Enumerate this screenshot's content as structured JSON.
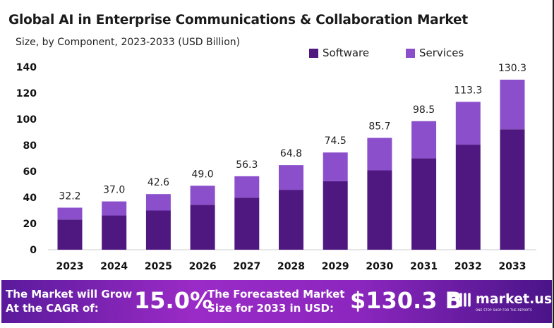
{
  "chart_data": {
    "type": "bar",
    "stacked": true,
    "title": "Global AI in Enterprise Communications & Collaboration Market",
    "subtitle": "Size, by Component, 2023-2033 (USD Billion)",
    "categories": [
      "2023",
      "2024",
      "2025",
      "2026",
      "2027",
      "2028",
      "2029",
      "2030",
      "2031",
      "2032",
      "2033"
    ],
    "series": [
      {
        "name": "Software",
        "color": "#4f1880",
        "values": [
          23.1,
          26.2,
          30.0,
          34.4,
          39.9,
          45.9,
          52.5,
          60.8,
          70.1,
          80.5,
          92.3
        ]
      },
      {
        "name": "Services",
        "color": "#8b4fcc",
        "values": [
          9.1,
          10.8,
          12.6,
          14.6,
          16.4,
          18.9,
          22.0,
          24.9,
          28.4,
          32.8,
          38.0
        ]
      }
    ],
    "totals_labels": [
      "32.2",
      "37.0",
      "42.6",
      "49.0",
      "56.3",
      "64.8",
      "74.5",
      "85.7",
      "98.5",
      "113.3",
      "130.3"
    ],
    "totals": [
      32.2,
      37.0,
      42.6,
      49.0,
      56.3,
      64.8,
      74.5,
      85.7,
      98.5,
      113.3,
      130.3
    ],
    "yticks": [
      "0",
      "20",
      "40",
      "60",
      "80",
      "100",
      "120",
      "140"
    ],
    "ylim": [
      0,
      140
    ],
    "grid": false,
    "legend": "top-right"
  },
  "footer": {
    "cagr_text": "The Market will Grow At the CAGR of:",
    "cagr_value": "15.0%",
    "forecast_text": "The Forecasted Market Size for 2033 in USD:",
    "forecast_value": "$130.3 B",
    "brand": "market.us",
    "tagline": "ONE STOP SHOP FOR THE REPORTS"
  }
}
